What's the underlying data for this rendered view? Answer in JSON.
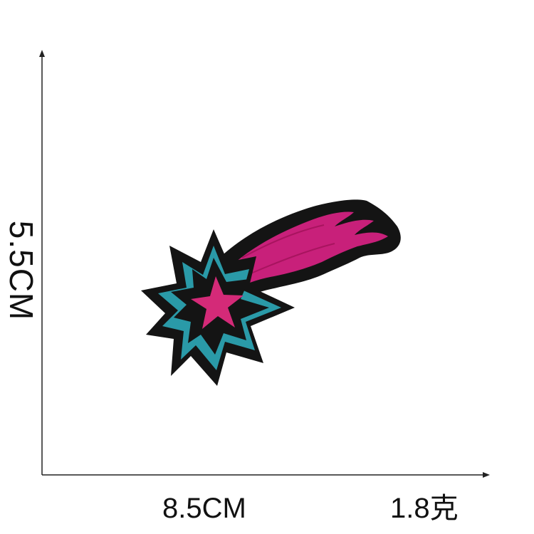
{
  "dimensions": {
    "height_label": "5.5CM",
    "width_label": "8.5CM",
    "weight_label": "1.8克"
  },
  "product": {
    "name": "shooting-star-embroidered-patch",
    "colors": {
      "outline": "#141414",
      "tail": "#c8207a",
      "star_center": "#d42a78",
      "star_accent": "#2a9aa8"
    }
  }
}
